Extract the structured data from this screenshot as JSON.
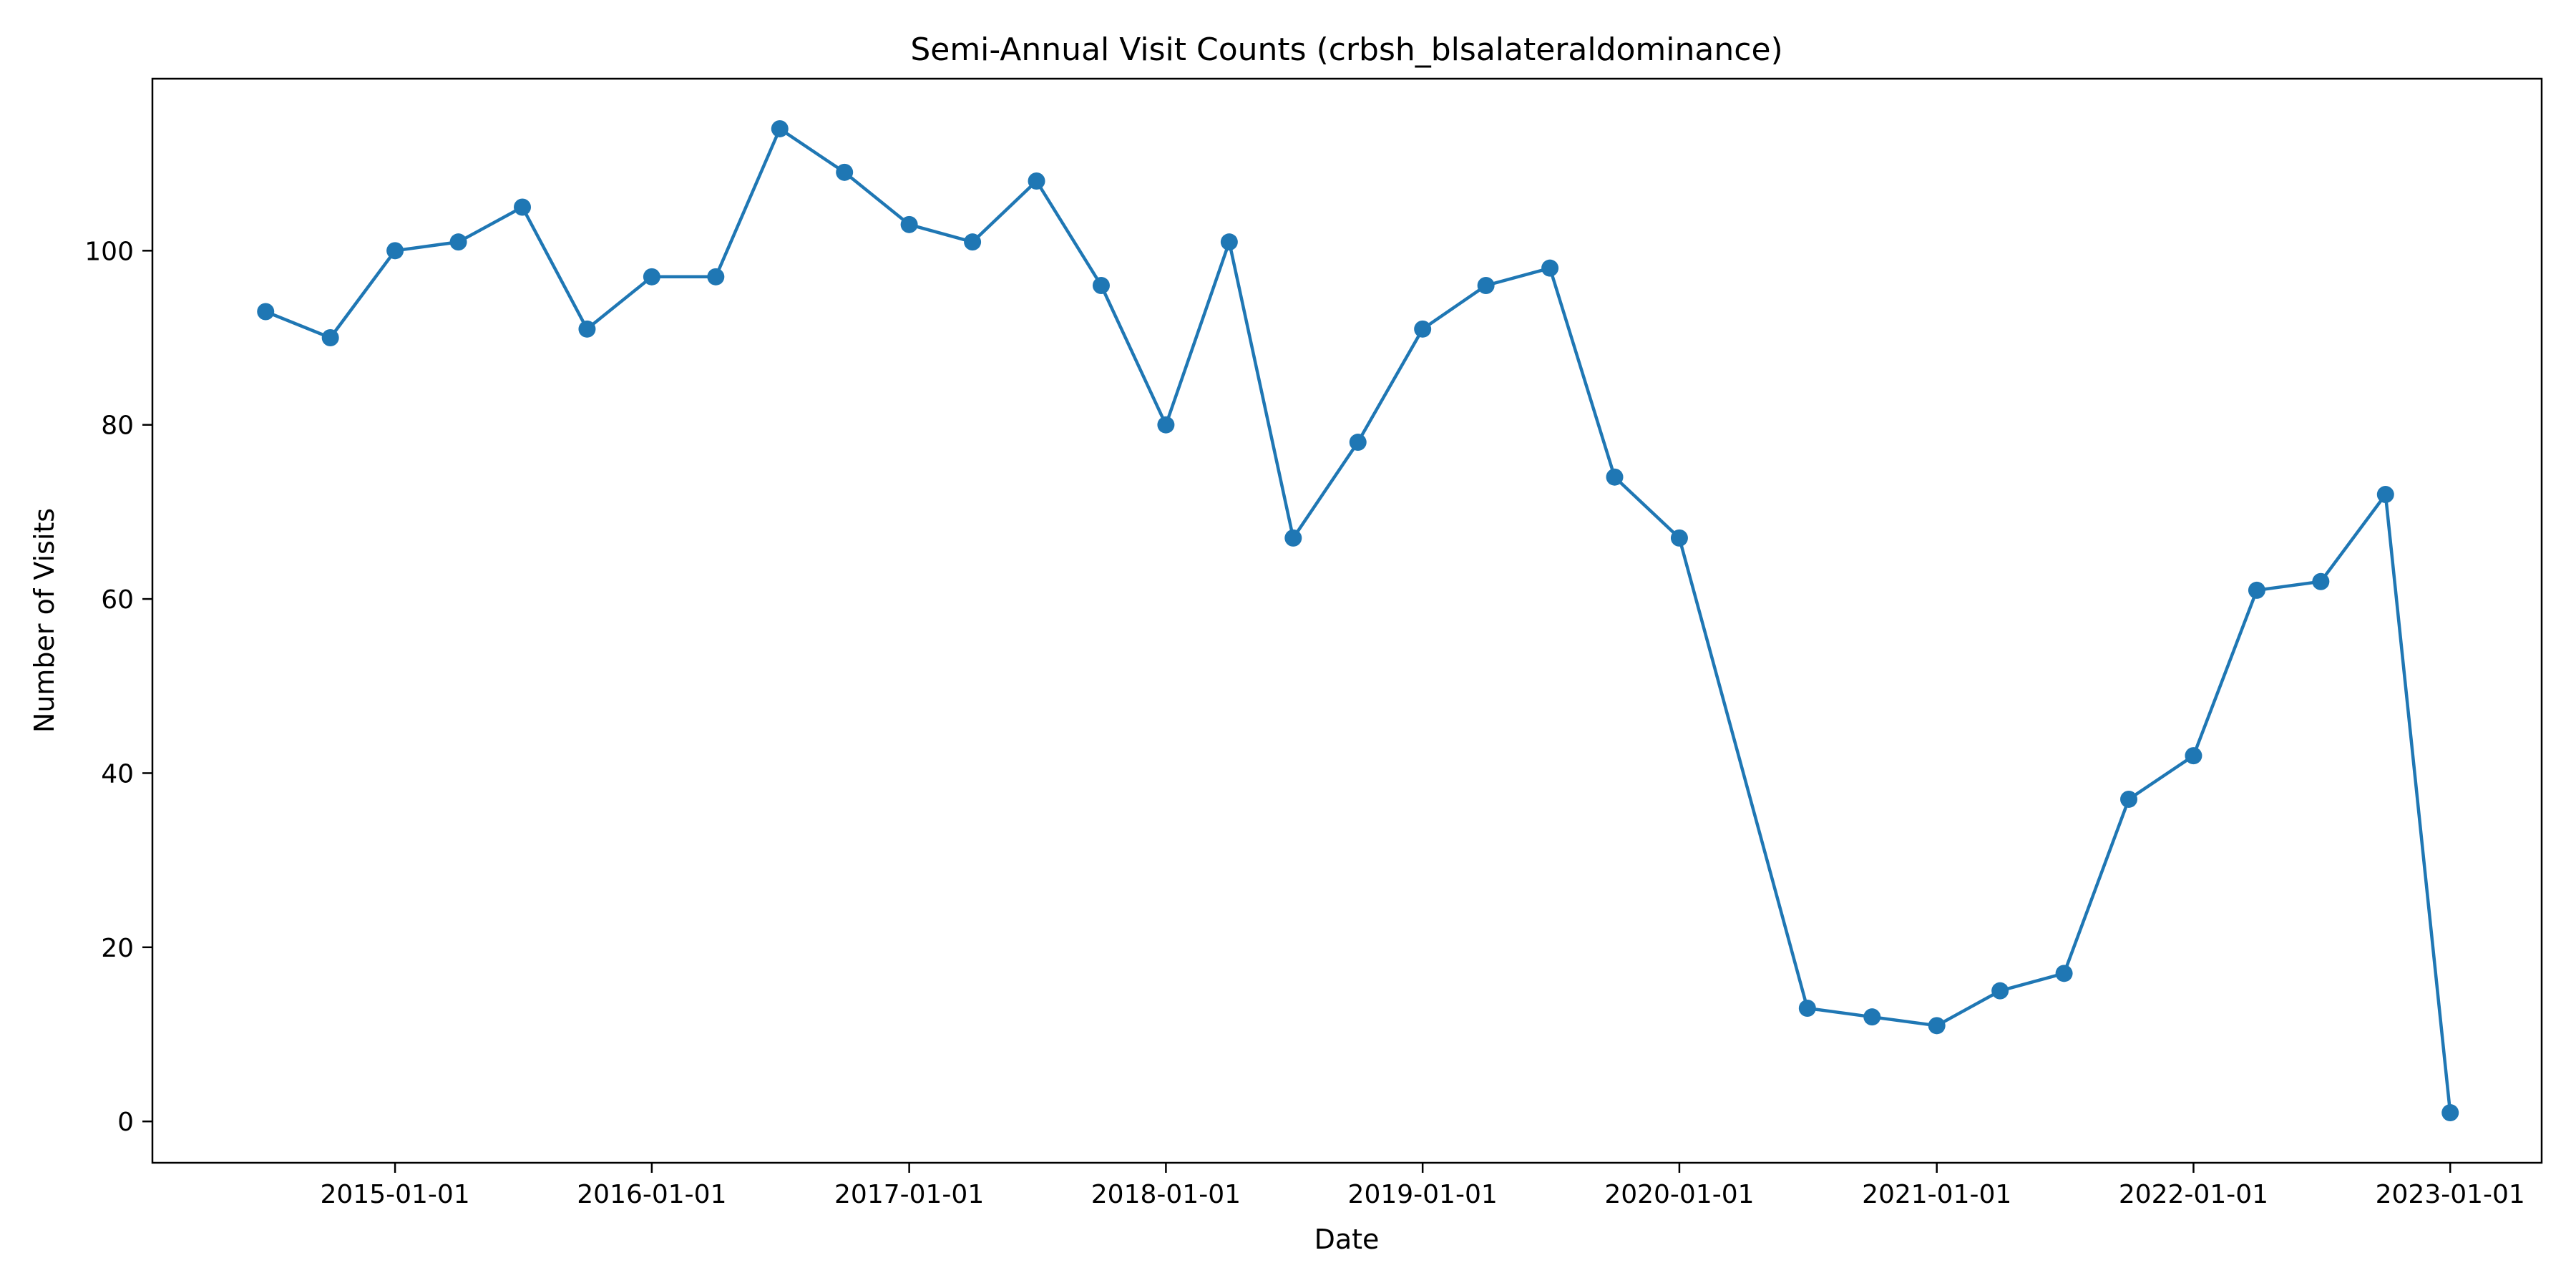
{
  "chart_data": {
    "type": "line",
    "title": "Semi-Annual Visit Counts (crbsh_blsalateraldominance)",
    "xlabel": "Date",
    "ylabel": "Number of Visits",
    "x_type": "date",
    "xlim": [
      "2014-01-21",
      "2023-05-11"
    ],
    "ylim": [
      -4.75,
      119.75
    ],
    "x_ticks": [
      "2015-01-01",
      "2016-01-01",
      "2017-01-01",
      "2018-01-01",
      "2019-01-01",
      "2020-01-01",
      "2021-01-01",
      "2022-01-01",
      "2023-01-01"
    ],
    "y_ticks": [
      0,
      20,
      40,
      60,
      80,
      100
    ],
    "grid": false,
    "legend": "none",
    "series": [
      {
        "color": "#1f77b4",
        "marker": "circle",
        "points": [
          {
            "x": "2014-07-01",
            "y": 93
          },
          {
            "x": "2014-10-01",
            "y": 90
          },
          {
            "x": "2015-01-01",
            "y": 100
          },
          {
            "x": "2015-04-01",
            "y": 101
          },
          {
            "x": "2015-07-01",
            "y": 105
          },
          {
            "x": "2015-10-01",
            "y": 91
          },
          {
            "x": "2016-01-01",
            "y": 97
          },
          {
            "x": "2016-04-01",
            "y": 97
          },
          {
            "x": "2016-07-01",
            "y": 114
          },
          {
            "x": "2016-10-01",
            "y": 109
          },
          {
            "x": "2017-01-01",
            "y": 103
          },
          {
            "x": "2017-04-01",
            "y": 101
          },
          {
            "x": "2017-07-01",
            "y": 108
          },
          {
            "x": "2017-10-01",
            "y": 96
          },
          {
            "x": "2018-01-01",
            "y": 80
          },
          {
            "x": "2018-04-01",
            "y": 101
          },
          {
            "x": "2018-07-01",
            "y": 67
          },
          {
            "x": "2018-10-01",
            "y": 78
          },
          {
            "x": "2019-01-01",
            "y": 91
          },
          {
            "x": "2019-04-01",
            "y": 96
          },
          {
            "x": "2019-07-01",
            "y": 98
          },
          {
            "x": "2019-10-01",
            "y": 74
          },
          {
            "x": "2020-01-01",
            "y": 67
          },
          {
            "x": "2020-07-01",
            "y": 13
          },
          {
            "x": "2020-10-01",
            "y": 12
          },
          {
            "x": "2021-01-01",
            "y": 11
          },
          {
            "x": "2021-04-01",
            "y": 15
          },
          {
            "x": "2021-07-01",
            "y": 17
          },
          {
            "x": "2021-10-01",
            "y": 37
          },
          {
            "x": "2022-01-01",
            "y": 42
          },
          {
            "x": "2022-04-01",
            "y": 61
          },
          {
            "x": "2022-07-01",
            "y": 62
          },
          {
            "x": "2022-10-01",
            "y": 72
          },
          {
            "x": "2023-01-01",
            "y": 1
          }
        ]
      }
    ]
  }
}
